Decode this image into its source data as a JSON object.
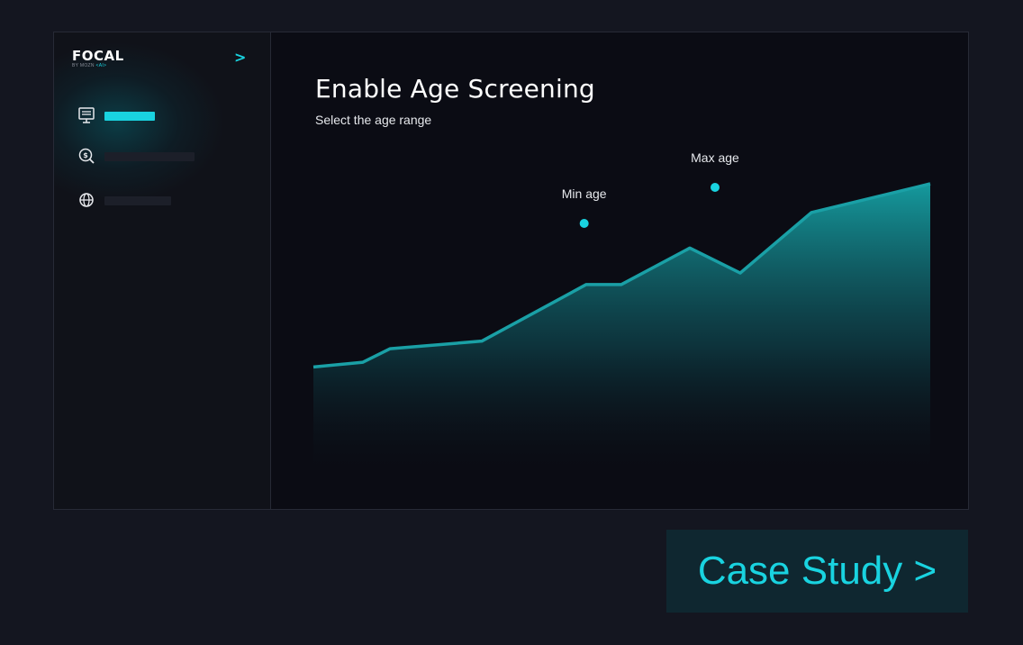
{
  "brand": {
    "logo": "FOCAL",
    "sub_prefix": "BY MOZN",
    "sub_accent": "<AI>",
    "collapse_glyph": ">"
  },
  "sidebar": {
    "items": [
      {
        "icon": "monitor-icon",
        "active": true
      },
      {
        "icon": "search-dollar-icon",
        "active": false
      },
      {
        "icon": "globe-icon",
        "active": false
      }
    ]
  },
  "main": {
    "title": "Enable Age Screening",
    "subtitle": "Select the age range"
  },
  "chart_data": {
    "type": "area",
    "x": [
      0,
      55,
      85,
      187,
      303,
      342,
      418,
      474,
      553,
      685
    ],
    "values": [
      0.045,
      0.07,
      0.14,
      0.18,
      0.475,
      0.475,
      0.665,
      0.535,
      0.85,
      1.0
    ],
    "ylim": [
      0,
      1
    ],
    "grid": false,
    "annotations": [
      {
        "label": "Min age",
        "x_index": 3.98
      },
      {
        "label": "Max age",
        "x_index": 6.5
      }
    ]
  },
  "colors": {
    "accent": "#19d3e0",
    "line": "#1aa0a6",
    "background": "#141620"
  },
  "cta": {
    "label": "Case Study >"
  }
}
